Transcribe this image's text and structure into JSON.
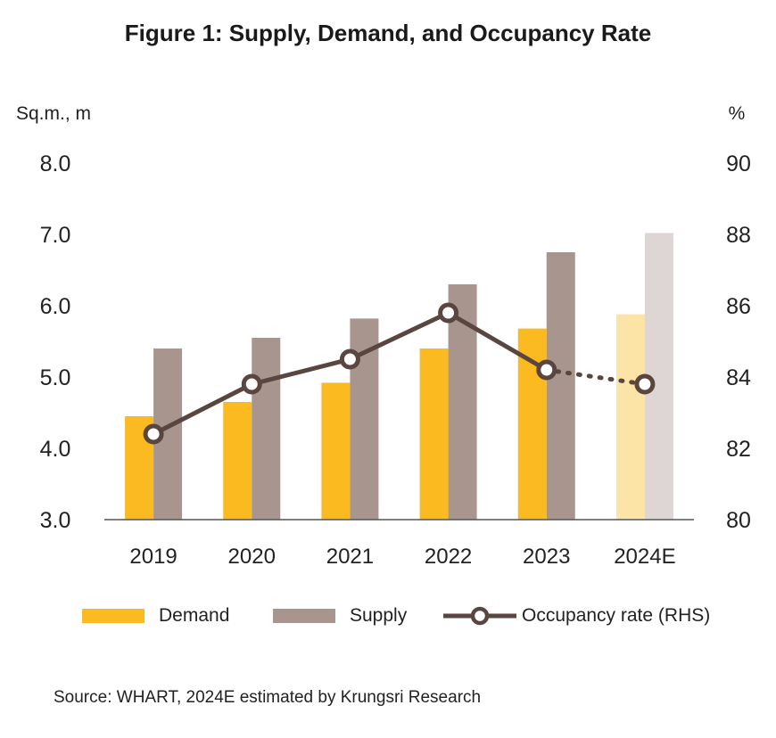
{
  "title": "Figure 1: Supply, Demand, and Occupancy Rate",
  "source": "Source: WHART, 2024E estimated by Krungsri Research",
  "colors": {
    "demand": "#FBBA1F",
    "supply": "#A8958E",
    "demand_estimate": "#FCE4A6",
    "supply_estimate": "#DED6D4",
    "occupancy": "#5A4640",
    "axis": "#555555"
  },
  "chart_data": {
    "type": "bar",
    "title": "Figure 1: Supply, Demand, and Occupancy Rate",
    "categories": [
      "2019",
      "2020",
      "2021",
      "2022",
      "2023",
      "2024E"
    ],
    "y_left": {
      "unit": "Sq.m., m",
      "ylim": [
        3.0,
        8.0
      ],
      "ticks": [
        "3.0",
        "4.0",
        "5.0",
        "6.0",
        "7.0",
        "8.0"
      ]
    },
    "y_right": {
      "unit": "%",
      "ylim": [
        80,
        90
      ],
      "ticks": [
        "80",
        "82",
        "84",
        "86",
        "88",
        "90"
      ]
    },
    "series": [
      {
        "name": "Demand",
        "type": "bar",
        "axis": "left",
        "values": [
          4.45,
          4.65,
          4.92,
          5.4,
          5.68,
          5.88
        ]
      },
      {
        "name": "Supply",
        "type": "bar",
        "axis": "left",
        "values": [
          5.4,
          5.55,
          5.82,
          6.3,
          6.75,
          7.02
        ]
      },
      {
        "name": "Occupancy rate (RHS)",
        "type": "line",
        "axis": "right",
        "values": [
          82.4,
          83.8,
          84.5,
          85.8,
          84.2,
          83.8
        ]
      }
    ],
    "estimated_categories": [
      "2024E"
    ],
    "grid": false,
    "legend_position": "bottom"
  }
}
